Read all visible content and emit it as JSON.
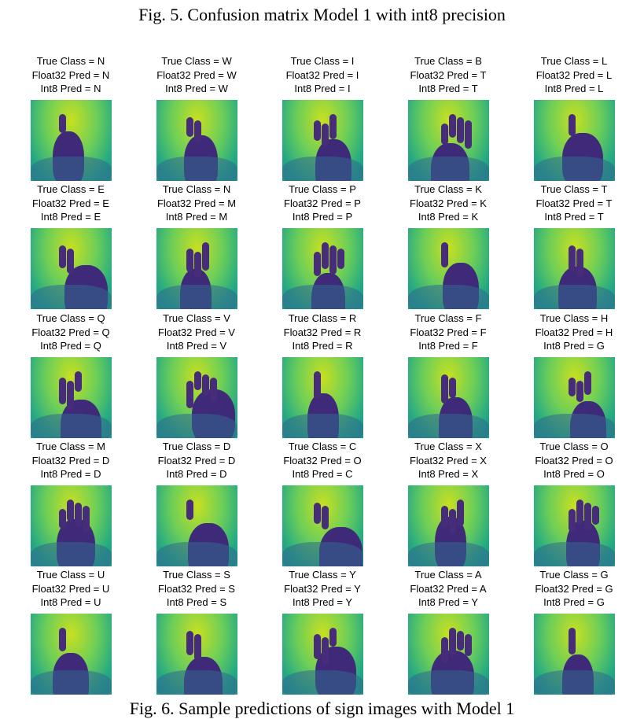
{
  "captions": {
    "top": "Fig. 5. Confusion matrix Model 1 with int8 precision",
    "bottom": "Fig. 6. Sample predictions of sign images with Model 1"
  },
  "label_prefixes": {
    "true_class": "True Class = ",
    "float32": "Float32 Pred = ",
    "int8": "Int8 Pred = "
  },
  "samples": [
    [
      {
        "true": "N",
        "float32": "N",
        "int8": "N"
      },
      {
        "true": "W",
        "float32": "W",
        "int8": "W"
      },
      {
        "true": "I",
        "float32": "I",
        "int8": "I"
      },
      {
        "true": "B",
        "float32": "T",
        "int8": "T"
      },
      {
        "true": "L",
        "float32": "L",
        "int8": "L"
      }
    ],
    [
      {
        "true": "E",
        "float32": "E",
        "int8": "E"
      },
      {
        "true": "N",
        "float32": "M",
        "int8": "M"
      },
      {
        "true": "P",
        "float32": "P",
        "int8": "P"
      },
      {
        "true": "K",
        "float32": "K",
        "int8": "K"
      },
      {
        "true": "T",
        "float32": "T",
        "int8": "T"
      }
    ],
    [
      {
        "true": "Q",
        "float32": "Q",
        "int8": "Q"
      },
      {
        "true": "V",
        "float32": "V",
        "int8": "V"
      },
      {
        "true": "R",
        "float32": "R",
        "int8": "R"
      },
      {
        "true": "F",
        "float32": "F",
        "int8": "F"
      },
      {
        "true": "H",
        "float32": "H",
        "int8": "G"
      }
    ],
    [
      {
        "true": "M",
        "float32": "D",
        "int8": "D"
      },
      {
        "true": "D",
        "float32": "D",
        "int8": "D"
      },
      {
        "true": "C",
        "float32": "O",
        "int8": "C"
      },
      {
        "true": "X",
        "float32": "X",
        "int8": "X"
      },
      {
        "true": "O",
        "float32": "O",
        "int8": "O"
      }
    ],
    [
      {
        "true": "U",
        "float32": "U",
        "int8": "U"
      },
      {
        "true": "S",
        "float32": "S",
        "int8": "S"
      },
      {
        "true": "Y",
        "float32": "Y",
        "int8": "Y"
      },
      {
        "true": "A",
        "float32": "A",
        "int8": "Y"
      },
      {
        "true": "G",
        "float32": "G",
        "int8": "G"
      }
    ]
  ]
}
